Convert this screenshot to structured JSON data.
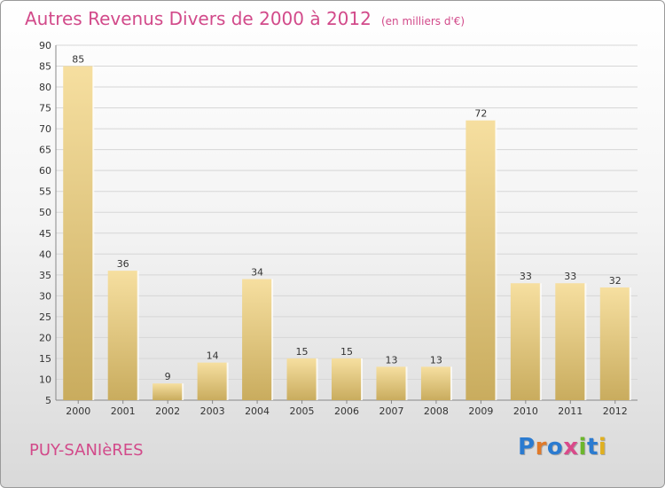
{
  "chart_data": {
    "type": "bar",
    "title": "Autres Revenus Divers de 2000 à 2012",
    "subtitle": "(en milliers d'€)",
    "categories": [
      "2000",
      "2001",
      "2002",
      "2003",
      "2004",
      "2005",
      "2006",
      "2007",
      "2008",
      "2009",
      "2010",
      "2011",
      "2012"
    ],
    "values": [
      85,
      36,
      9,
      14,
      34,
      15,
      15,
      13,
      13,
      72,
      33,
      33,
      32
    ],
    "ylim": [
      5,
      90
    ],
    "yticks": [
      5,
      10,
      15,
      20,
      25,
      30,
      35,
      40,
      45,
      50,
      55,
      60,
      65,
      70,
      75,
      80,
      85,
      90
    ],
    "grid": true,
    "legend": false
  },
  "location": "PUY-SANIèRES",
  "brand": "Proxiti",
  "colors": {
    "title": "#d24a8a",
    "bar_light": "#f6dfa0",
    "bar_dark": "#c9ac5e",
    "grid": "#d6d6d6",
    "logo": [
      "#2b7bd0",
      "#e07a2a",
      "#2b7bd0",
      "#d94a8a",
      "#6cb62c",
      "#2b7bd0",
      "#e0b020"
    ]
  }
}
